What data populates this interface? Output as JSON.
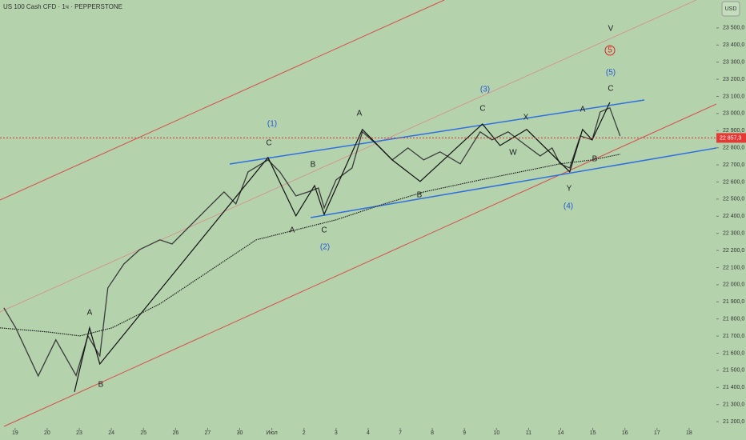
{
  "chart_data": {
    "type": "line",
    "title": "US 100 Cash CFD · 1ч · PEPPERSTONE",
    "currency": "USD",
    "x": [
      -0.35,
      0.02,
      0.72,
      1.27,
      1.9,
      2.27,
      2.64,
      2.89,
      3.39,
      3.89,
      4.51,
      4.89,
      5.51,
      6.01,
      6.51,
      6.88,
      7.26,
      7.88,
      8.25,
      8.75,
      9.13,
      9.45,
      9.63,
      10.0,
      10.5,
      10.82,
      11.25,
      11.75,
      12.24,
      12.73,
      13.24,
      13.87,
      14.49,
      14.86,
      15.36,
      15.86,
      16.36,
      16.73,
      16.98,
      17.28,
      17.61,
      17.98,
      18.23,
      18.53,
      18.85
    ],
    "series": [
      {
        "color": "#3b3b3b",
        "values": [
          21865,
          21748,
          21467,
          21678,
          21470,
          21701,
          21584,
          21981,
          22121,
          22206,
          22262,
          22238,
          22355,
          22449,
          22542,
          22472,
          22659,
          22729,
          22659,
          22519,
          22542,
          22565,
          22449,
          22612,
          22682,
          22893,
          22822,
          22729,
          22799,
          22729,
          22776,
          22706,
          22893,
          22846,
          22893,
          22822,
          22752,
          22799,
          22706,
          22682,
          22869,
          22846,
          23009,
          23033,
          22869
        ]
      }
    ],
    "moving_average": {
      "color": "#222222",
      "x": [
        -0.47,
        1.02,
        2.02,
        3.02,
        4.51,
        6.01,
        7.51,
        9.0,
        10.0,
        11.5,
        12.74,
        14.49,
        15.74,
        16.98,
        17.98,
        18.85
      ],
      "values": [
        21748,
        21724,
        21701,
        21748,
        21888,
        22075,
        22262,
        22332,
        22379,
        22472,
        22542,
        22612,
        22659,
        22706,
        22729,
        22762
      ]
    },
    "wave_path": {
      "color": "#111111",
      "x": [
        1.85,
        2.32,
        2.64,
        7.88,
        8.75,
        9.33,
        9.63,
        10.82,
        11.75,
        12.62,
        14.56,
        15.11,
        15.94,
        17.28,
        17.68,
        17.98,
        18.53
      ],
      "values": [
        21374,
        21748,
        21537,
        22743,
        22402,
        22579,
        22411,
        22907,
        22729,
        22603,
        22939,
        22813,
        22907,
        22659,
        22907,
        22846,
        23065
      ]
    },
    "wave_labels": [
      "V",
      "5",
      "(5)",
      "C",
      "(3)",
      "A",
      "C",
      "X",
      "A",
      "(1)",
      "C",
      "B",
      "A",
      "A",
      "C",
      "(2)",
      "B",
      "W",
      "Y",
      "(4)",
      "B",
      "B"
    ],
    "last_price": {
      "value": 22857.3,
      "label": "22 857,3"
    },
    "xlim": [
      -0.47,
      21.85
    ],
    "ylim": [
      21163,
      23663
    ],
    "xticks": [
      {
        "value": 0,
        "label": "19"
      },
      {
        "value": 1,
        "label": "20"
      },
      {
        "value": 2,
        "label": "23"
      },
      {
        "value": 3,
        "label": "24"
      },
      {
        "value": 4,
        "label": "25"
      },
      {
        "value": 5,
        "label": "26"
      },
      {
        "value": 6,
        "label": "27"
      },
      {
        "value": 7,
        "label": "30"
      },
      {
        "value": 8,
        "label": "Июл"
      },
      {
        "value": 9,
        "label": "2"
      },
      {
        "value": 10,
        "label": "3"
      },
      {
        "value": 11,
        "label": "4"
      },
      {
        "value": 12,
        "label": "7"
      },
      {
        "value": 13,
        "label": "8"
      },
      {
        "value": 14,
        "label": "9"
      },
      {
        "value": 15,
        "label": "10"
      },
      {
        "value": 16,
        "label": "11"
      },
      {
        "value": 17,
        "label": "14"
      },
      {
        "value": 18,
        "label": "15"
      },
      {
        "value": 19,
        "label": "16"
      },
      {
        "value": 20,
        "label": "17"
      },
      {
        "value": 21,
        "label": "18"
      }
    ],
    "yticks": [
      {
        "value": 21200,
        "label": "21 200,0"
      },
      {
        "value": 21300,
        "label": "21 300,0"
      },
      {
        "value": 21400,
        "label": "21 400,0"
      },
      {
        "value": 21500,
        "label": "21 500,0"
      },
      {
        "value": 21600,
        "label": "21 600,0"
      },
      {
        "value": 21700,
        "label": "21 700,0"
      },
      {
        "value": 21800,
        "label": "21 800,0"
      },
      {
        "value": 21900,
        "label": "21 900,0"
      },
      {
        "value": 22000,
        "label": "22 000,0"
      },
      {
        "value": 22100,
        "label": "22 100,0"
      },
      {
        "value": 22200,
        "label": "22 200,0"
      },
      {
        "value": 22300,
        "label": "22 300,0"
      },
      {
        "value": 22400,
        "label": "22 400,0"
      },
      {
        "value": 22500,
        "label": "22 500,0"
      },
      {
        "value": 22600,
        "label": "22 600,0"
      },
      {
        "value": 22700,
        "label": "22 700,0"
      },
      {
        "value": 22800,
        "label": "22 800,0"
      },
      {
        "value": 22900,
        "label": "22 900,0"
      },
      {
        "value": 23000,
        "label": "23 000,0"
      },
      {
        "value": 23100,
        "label": "23 100,0"
      },
      {
        "value": 23200,
        "label": "23 200,0"
      },
      {
        "value": 23300,
        "label": "23 300,0"
      },
      {
        "value": 23400,
        "label": "23 400,0"
      },
      {
        "value": 23500,
        "label": "23 500,0"
      }
    ],
    "grid": false
  }
}
